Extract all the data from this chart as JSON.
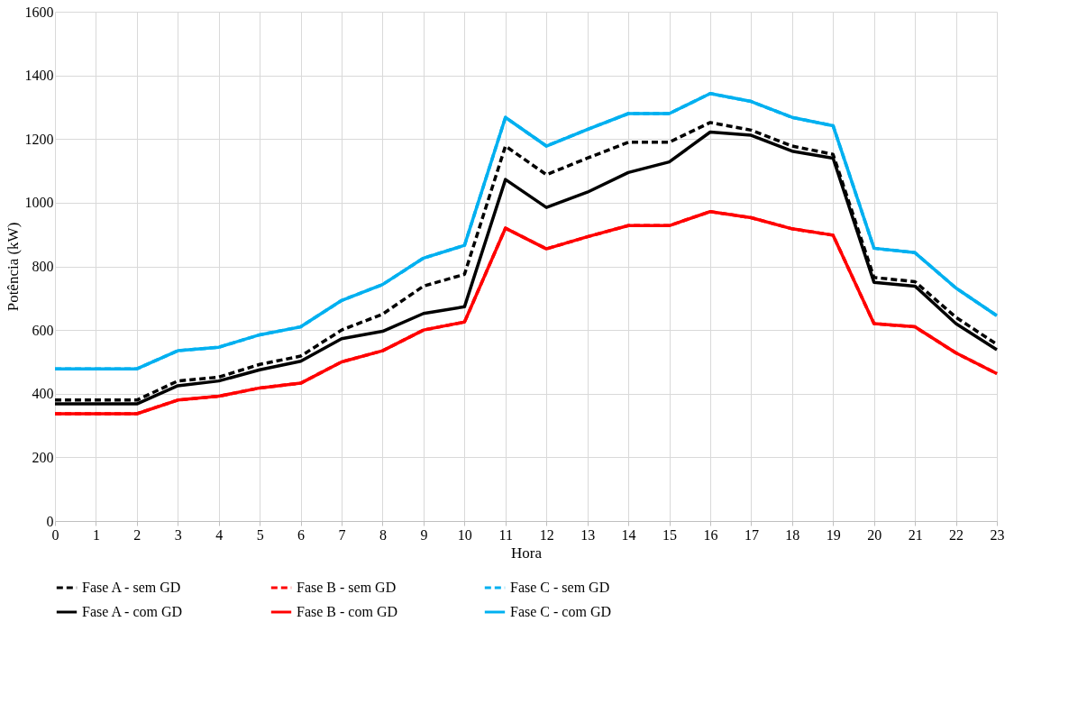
{
  "chart_data": {
    "type": "line",
    "xlabel": "Hora",
    "ylabel": "Potência (kW)",
    "x": [
      0,
      1,
      2,
      3,
      4,
      5,
      6,
      7,
      8,
      9,
      10,
      11,
      12,
      13,
      14,
      15,
      16,
      17,
      18,
      19,
      20,
      21,
      22,
      23
    ],
    "xlim": [
      0,
      23
    ],
    "xticks": [
      0,
      1,
      2,
      3,
      4,
      5,
      6,
      7,
      8,
      9,
      10,
      11,
      12,
      13,
      14,
      15,
      16,
      17,
      18,
      19,
      20,
      21,
      22,
      23
    ],
    "ylim": [
      0,
      1600
    ],
    "yticks": [
      0,
      200,
      400,
      600,
      800,
      1000,
      1200,
      1400,
      1600
    ],
    "grid": true,
    "legend": "bottom",
    "marker": "none",
    "series": [
      {
        "name": "Fase A - sem GD",
        "color": "#000000",
        "line_style": "dashed",
        "values": [
          380,
          380,
          380,
          440,
          452,
          492,
          518,
          600,
          650,
          738,
          775,
          1178,
          1088,
          1140,
          1190,
          1190,
          1252,
          1228,
          1178,
          1152,
          765,
          752,
          640,
          555
        ]
      },
      {
        "name": "Fase B - sem GD",
        "color": "#ff0000",
        "line_style": "dashed",
        "values": [
          337,
          337,
          337,
          380,
          392,
          418,
          433,
          500,
          535,
          600,
          625,
          920,
          855,
          893,
          928,
          928,
          972,
          953,
          918,
          898,
          620,
          610,
          528,
          463
        ]
      },
      {
        "name": "Fase C - sem GD",
        "color": "#00b0f0",
        "line_style": "dashed",
        "values": [
          478,
          478,
          478,
          535,
          546,
          585,
          610,
          693,
          743,
          826,
          866,
          1268,
          1178,
          1230,
          1280,
          1280,
          1343,
          1318,
          1268,
          1242,
          857,
          843,
          732,
          645
        ]
      },
      {
        "name": "Fase A - com GD",
        "color": "#000000",
        "line_style": "solid",
        "values": [
          368,
          368,
          368,
          425,
          440,
          475,
          502,
          573,
          596,
          652,
          673,
          1073,
          985,
          1033,
          1095,
          1128,
          1222,
          1212,
          1162,
          1140,
          750,
          738,
          620,
          538
        ]
      },
      {
        "name": "Fase B - com GD",
        "color": "#ff0000",
        "line_style": "solid",
        "values": [
          337,
          337,
          337,
          380,
          392,
          418,
          433,
          500,
          535,
          600,
          625,
          920,
          855,
          893,
          928,
          928,
          972,
          953,
          918,
          898,
          620,
          610,
          528,
          463
        ]
      },
      {
        "name": "Fase C - com GD",
        "color": "#00b0f0",
        "line_style": "solid",
        "values": [
          478,
          478,
          478,
          535,
          546,
          585,
          610,
          693,
          743,
          826,
          866,
          1268,
          1178,
          1230,
          1280,
          1280,
          1343,
          1318,
          1268,
          1242,
          857,
          843,
          732,
          645
        ]
      }
    ]
  }
}
